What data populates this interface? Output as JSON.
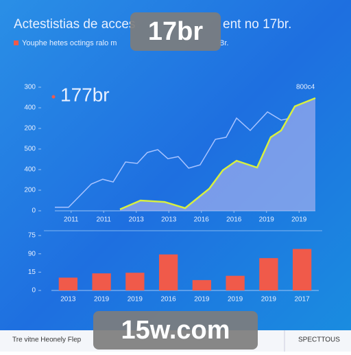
{
  "chart_data": [
    {
      "type": "line",
      "title": "Actestistias de acces",
      "title_end": "ent no 17br.",
      "subtitle": "Youphe hetes octings ralo m",
      "subtitle_end": "Br.",
      "annotation": "177br",
      "corner_label": "800c4",
      "xlim": [
        0,
        8
      ],
      "xticks": [
        {
          "value": 0.5,
          "label": "2011"
        },
        {
          "value": 1.5,
          "label": "2011"
        },
        {
          "value": 2.5,
          "label": "2013"
        },
        {
          "value": 3.5,
          "label": "2013"
        },
        {
          "value": 4.5,
          "label": "2016"
        },
        {
          "value": 5.5,
          "label": "2016"
        },
        {
          "value": 6.5,
          "label": "2019"
        },
        {
          "value": 7.5,
          "label": "2019"
        }
      ],
      "ylim": [
        0,
        600
      ],
      "yticks": [
        0,
        {
          "value": 100,
          "label": "200"
        },
        {
          "value": 200,
          "label": "400"
        },
        {
          "value": 300,
          "label": "500"
        },
        {
          "value": 400,
          "label": "200"
        },
        {
          "value": 500,
          "label": "400"
        },
        {
          "value": 600,
          "label": "300"
        }
      ],
      "series": [
        {
          "color": "#a9c4ff",
          "area": false,
          "x": [
            0,
            0.42,
            1.12,
            1.47,
            1.79,
            2.17,
            2.53,
            2.84,
            3.16,
            3.47,
            3.79,
            4.11,
            4.46,
            4.93,
            5.26,
            5.58,
            6.0,
            6.53,
            6.95,
            7.16
          ],
          "values": [
            17,
            17,
            130,
            153,
            140,
            237,
            230,
            283,
            297,
            253,
            263,
            207,
            223,
            347,
            357,
            450,
            390,
            480,
            440,
            447
          ]
        },
        {
          "color": "#d8f040",
          "area": true,
          "x": [
            2.0,
            2.63,
            3.37,
            4.0,
            4.74,
            5.16,
            5.58,
            6.21,
            6.63,
            6.95,
            7.37,
            8.0
          ],
          "values": [
            7,
            50,
            43,
            13,
            107,
            197,
            243,
            210,
            357,
            390,
            507,
            547
          ]
        }
      ]
    },
    {
      "type": "bar",
      "color": "#f05a4a",
      "categories": [
        "2013",
        "2019",
        "2019",
        "2016",
        "2019",
        "2019",
        "2019",
        "2017"
      ],
      "values": [
        21,
        28,
        29,
        59,
        17,
        24,
        53,
        68
      ],
      "ylim": [
        0,
        90
      ],
      "yticks": [
        0,
        {
          "value": 30,
          "label": "15"
        },
        {
          "value": 60,
          "label": "90"
        },
        {
          "value": 90,
          "label": "75"
        }
      ]
    }
  ],
  "badges": [
    "17br",
    "15w.com"
  ],
  "footer": {
    "left": "Tre vitne Heonely Flep",
    "right": "SPECTTOUS"
  }
}
